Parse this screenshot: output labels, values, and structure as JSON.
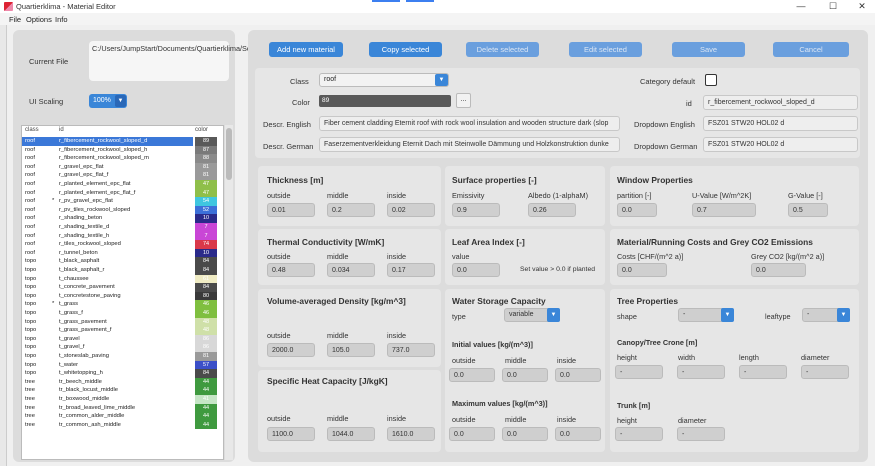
{
  "window": {
    "title": "Quartierklima - Material Editor",
    "min": "—",
    "max": "☐",
    "close": "✕"
  },
  "menu": [
    "File",
    "Options",
    "Info"
  ],
  "left": {
    "current_file_label": "Current File",
    "current_file_value": "C:/Users/JumpStart/Documents/Quartierklima/Solver/elementCatalog.json",
    "ui_scaling_label": "UI Scaling",
    "ui_scaling_value": "100%"
  },
  "table": {
    "headers": [
      "class",
      "id",
      "color"
    ],
    "rows": [
      {
        "cls": "roof",
        "mark": "",
        "id": "r_fibercement_rockwool_sloped_d",
        "color": "89",
        "hex": "#595959",
        "sel": true
      },
      {
        "cls": "roof",
        "mark": "",
        "id": "r_fibercement_rockwool_sloped_h",
        "color": "87",
        "hex": "#7a7a7a",
        "sel": false
      },
      {
        "cls": "roof",
        "mark": "",
        "id": "r_fibercement_rockwool_sloped_m",
        "color": "88",
        "hex": "#8a8a8a",
        "sel": false
      },
      {
        "cls": "roof",
        "mark": "",
        "id": "r_gravel_epc_flat",
        "color": "81",
        "hex": "#9a9a9a",
        "sel": false
      },
      {
        "cls": "roof",
        "mark": "",
        "id": "r_gravel_epc_flat_f",
        "color": "81",
        "hex": "#9a9a9a",
        "sel": false
      },
      {
        "cls": "roof",
        "mark": "",
        "id": "r_planted_element_epc_flat",
        "color": "47",
        "hex": "#8fbf4a",
        "sel": false
      },
      {
        "cls": "roof",
        "mark": "",
        "id": "r_planted_element_epc_flat_f",
        "color": "47",
        "hex": "#8fbf4a",
        "sel": false
      },
      {
        "cls": "roof",
        "mark": "*",
        "id": "r_pv_gravel_epc_flat",
        "color": "54",
        "hex": "#3fc6e0",
        "sel": false
      },
      {
        "cls": "roof",
        "mark": "",
        "id": "r_pv_tiles_rockwool_sloped",
        "color": "52",
        "hex": "#3c6fd8",
        "sel": false
      },
      {
        "cls": "roof",
        "mark": "",
        "id": "r_shading_beton",
        "color": "10",
        "hex": "#2a2a8a",
        "sel": false
      },
      {
        "cls": "roof",
        "mark": "",
        "id": "r_shading_textile_d",
        "color": "7",
        "hex": "#c946d6",
        "sel": false
      },
      {
        "cls": "roof",
        "mark": "",
        "id": "r_shading_textile_h",
        "color": "7",
        "hex": "#c946d6",
        "sel": false
      },
      {
        "cls": "roof",
        "mark": "",
        "id": "r_tiles_rockwool_sloped",
        "color": "74",
        "hex": "#d9384a",
        "sel": false
      },
      {
        "cls": "roof",
        "mark": "",
        "id": "r_tunnel_beton",
        "color": "10",
        "hex": "#2a2a8a",
        "sel": false
      },
      {
        "cls": "topo",
        "mark": "",
        "id": "t_black_asphalt",
        "color": "84",
        "hex": "#4a4a4a",
        "sel": false
      },
      {
        "cls": "topo",
        "mark": "",
        "id": "t_black_asphalt_r",
        "color": "84",
        "hex": "#4a4a4a",
        "sel": false
      },
      {
        "cls": "topo",
        "mark": "",
        "id": "t_chaussee",
        "color": "61",
        "hex": "#f0ecc4",
        "sel": false
      },
      {
        "cls": "topo",
        "mark": "",
        "id": "t_concrete_pavement",
        "color": "84",
        "hex": "#4a4a4a",
        "sel": false
      },
      {
        "cls": "topo",
        "mark": "",
        "id": "t_concretestone_paving",
        "color": "80",
        "hex": "#3a3a3a",
        "sel": false
      },
      {
        "cls": "topo",
        "mark": "*",
        "id": "t_grass",
        "color": "46",
        "hex": "#7fbf3f",
        "sel": false
      },
      {
        "cls": "topo",
        "mark": "",
        "id": "t_grass_f",
        "color": "46",
        "hex": "#7fbf3f",
        "sel": false
      },
      {
        "cls": "topo",
        "mark": "",
        "id": "t_grass_pavement",
        "color": "48",
        "hex": "#cfe0a8",
        "sel": false
      },
      {
        "cls": "topo",
        "mark": "",
        "id": "t_grass_pavement_f",
        "color": "48",
        "hex": "#cfe0a8",
        "sel": false
      },
      {
        "cls": "topo",
        "mark": "",
        "id": "t_gravel",
        "color": "86",
        "hex": "#d8d8d8",
        "sel": false
      },
      {
        "cls": "topo",
        "mark": "",
        "id": "t_gravel_f",
        "color": "86",
        "hex": "#d8d8d8",
        "sel": false
      },
      {
        "cls": "topo",
        "mark": "",
        "id": "t_stoneslab_paving",
        "color": "81",
        "hex": "#9a9a9a",
        "sel": false
      },
      {
        "cls": "topo",
        "mark": "",
        "id": "t_water",
        "color": "57",
        "hex": "#3b4fc8",
        "sel": false
      },
      {
        "cls": "topo",
        "mark": "",
        "id": "t_whitetopping_h",
        "color": "84",
        "hex": "#4a4a4a",
        "sel": false
      },
      {
        "cls": "tree",
        "mark": "",
        "id": "tr_beech_middle",
        "color": "44",
        "hex": "#3f9a3f",
        "sel": false
      },
      {
        "cls": "tree",
        "mark": "",
        "id": "tr_black_locust_middle",
        "color": "44",
        "hex": "#3f9a3f",
        "sel": false
      },
      {
        "cls": "tree",
        "mark": "",
        "id": "tr_boxwood_middle",
        "color": "41",
        "hex": "#c6e6c6",
        "sel": false
      },
      {
        "cls": "tree",
        "mark": "",
        "id": "tr_broad_leaved_lime_middle",
        "color": "44",
        "hex": "#3f9a3f",
        "sel": false
      },
      {
        "cls": "tree",
        "mark": "",
        "id": "tr_common_alder_middle",
        "color": "44",
        "hex": "#3f9a3f",
        "sel": false
      },
      {
        "cls": "tree",
        "mark": "",
        "id": "tr_common_ash_middle",
        "color": "44",
        "hex": "#3f9a3f",
        "sel": false
      }
    ]
  },
  "toolbar": {
    "add": "Add new material",
    "copy": "Copy selected",
    "delete": "Delete selected",
    "edit": "Edit selected",
    "save": "Save",
    "cancel": "Cancel"
  },
  "props": {
    "class_label": "Class",
    "class_value": "roof",
    "color_label": "Color",
    "color_value": "89",
    "color_hex": "#595959",
    "color_btn": "...",
    "category_default_label": "Category default",
    "id_label": "id",
    "id_value": "r_fibercement_rockwool_sloped_d",
    "descr_en_label": "Descr. English",
    "descr_en_value": "Fiber cement cladding Eternit roof with rock wool insulation and wooden structure dark (slop",
    "descr_de_label": "Descr. German",
    "descr_de_value": "Faserzementverkleidung Eternit Dach mit Steinwolle Dämmung und Holzkonstruktion dunke",
    "dd_en_label": "Dropdown English",
    "dd_en_value": "FSZ01 STW20 HOL02 d",
    "dd_de_label": "Dropdown German",
    "dd_de_value": "FSZ01 STW20 HOL02 d"
  },
  "thickness": {
    "title": "Thickness [m]",
    "labels": [
      "outside",
      "middle",
      "inside"
    ],
    "values": [
      "0.01",
      "0.2",
      "0.02"
    ]
  },
  "thermal": {
    "title": "Thermal Conductivity [W/mK]",
    "labels": [
      "outside",
      "middle",
      "inside"
    ],
    "values": [
      "0.48",
      "0.034",
      "0.17"
    ]
  },
  "density": {
    "title": "Volume-averaged Density [kg/m^3]",
    "labels": [
      "outside",
      "middle",
      "inside"
    ],
    "values": [
      "2000.0",
      "105.0",
      "737.0"
    ]
  },
  "heat": {
    "title": "Specific Heat Capacity [J/kgK]",
    "labels": [
      "outside",
      "middle",
      "inside"
    ],
    "values": [
      "1100.0",
      "1044.0",
      "1610.0"
    ]
  },
  "surface": {
    "title": "Surface properties [-]",
    "labels": [
      "Emissivity",
      "Albedo (1-alphaM)"
    ],
    "values": [
      "0.9",
      "0.26"
    ]
  },
  "lai": {
    "title": "Leaf Area Index [-]",
    "label": "value",
    "value": "0.0",
    "note": "Set value > 0.0 if planted"
  },
  "storage": {
    "title": "Water Storage Capacity",
    "type_label": "type",
    "type_value": "variable",
    "initial_title": "Initial values [kg/(m^3)]",
    "max_title": "Maximum values [kg/(m^3)]",
    "labels": [
      "outside",
      "middle",
      "inside"
    ],
    "initial_values": [
      "0.0",
      "0.0",
      "0.0"
    ],
    "max_values": [
      "0.0",
      "0.0",
      "0.0"
    ]
  },
  "window_props": {
    "title": "Window Properties",
    "labels": [
      "partition [-]",
      "U-Value [W/m^2K]",
      "G-Value [-]"
    ],
    "values": [
      "0.0",
      "0.7",
      "0.5"
    ]
  },
  "costs": {
    "title": "Material/Running Costs and Grey CO2 Emissions",
    "labels": [
      "Costs [CHF/(m^2 a)]",
      "Grey CO2 [kg/(m^2 a)]"
    ],
    "values": [
      "0.0",
      "0.0"
    ]
  },
  "tree": {
    "title": "Tree Properties",
    "shape_label": "shape",
    "shape_value": "-",
    "leaftype_label": "leaftype",
    "leaftype_value": "-",
    "crone_title": "Canopy/Tree Crone [m]",
    "crone_labels": [
      "height",
      "width",
      "length",
      "diameter"
    ],
    "crone_values": [
      "-",
      "-",
      "-",
      "-"
    ],
    "trunk_title": "Trunk [m]",
    "trunk_labels": [
      "height",
      "diameter"
    ],
    "trunk_values": [
      "-",
      "-"
    ]
  }
}
